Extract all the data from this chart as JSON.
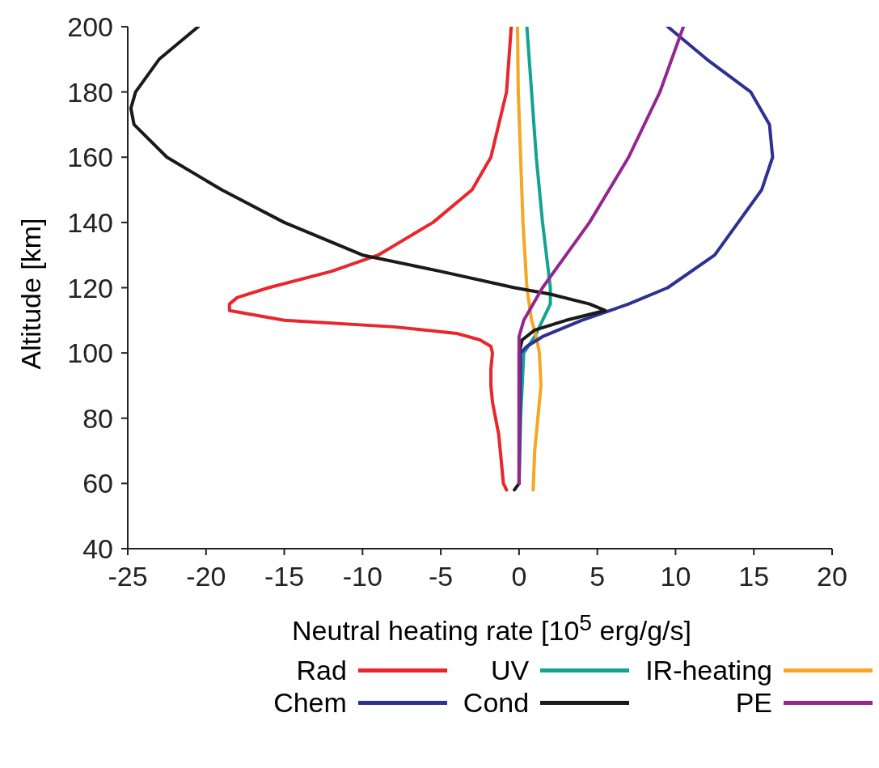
{
  "chart_data": {
    "type": "line",
    "xlabel": "Neutral heating rate [10$^{5}$ erg/g/s]",
    "ylabel": "Altitude [km]",
    "xlim": [
      -25,
      20
    ],
    "ylim": [
      40,
      200
    ],
    "xticks": [
      -25,
      -20,
      -15,
      -10,
      -5,
      0,
      5,
      10,
      15,
      20
    ],
    "yticks": [
      40,
      60,
      80,
      100,
      120,
      140,
      160,
      180,
      200
    ],
    "legend": "bottom",
    "series": [
      {
        "name": "Rad",
        "color": "#e8262b",
        "x": [
          -0.5,
          -0.8,
          -1.8,
          -3,
          -5.5,
          -9,
          -12,
          -16,
          -18,
          -18.5,
          -18.5,
          -15,
          -8,
          -4,
          -2.5,
          -1.8,
          -1.7,
          -1.8,
          -1.8,
          -1.7,
          -1.5,
          -1.3,
          -1.2,
          -1.1,
          -1,
          -0.8
        ],
        "values": [
          200,
          180,
          160,
          150,
          140,
          130,
          125,
          120,
          117,
          115,
          113,
          110,
          108,
          106,
          104,
          102,
          100,
          95,
          90,
          85,
          80,
          75,
          70,
          65,
          60,
          58
        ]
      },
      {
        "name": "UV",
        "color": "#12a391",
        "x": [
          0.5,
          0.8,
          1.1,
          1.5,
          2,
          2,
          1.5,
          1,
          0.3,
          0.1,
          0
        ],
        "values": [
          200,
          180,
          160,
          140,
          120,
          115,
          110,
          105,
          100,
          80,
          60
        ]
      },
      {
        "name": "IR-heating",
        "color": "#f5a623",
        "x": [
          -0.1,
          -0.05,
          0.1,
          0.25,
          0.5,
          0.8,
          1.1,
          1.3,
          1.4,
          1.2,
          1,
          0.9
        ],
        "values": [
          200,
          180,
          160,
          140,
          120,
          110,
          105,
          100,
          90,
          80,
          70,
          58
        ]
      },
      {
        "name": "Chem",
        "color": "#2e3192",
        "x": [
          9.5,
          12,
          14.8,
          16,
          16.2,
          15.5,
          14,
          12.5,
          9.5,
          7,
          4,
          1.5,
          0.5,
          0.1,
          0
        ],
        "values": [
          200,
          190,
          180,
          170,
          160,
          150,
          140,
          130,
          120,
          115,
          110,
          105,
          102,
          100,
          60
        ]
      },
      {
        "name": "Cond",
        "color": "#1a1a1a",
        "x": [
          -20.5,
          -23,
          -24.5,
          -24.8,
          -24.6,
          -22.5,
          -19,
          -15,
          -10,
          -5,
          -0.3,
          2,
          4.5,
          5.5,
          3,
          1,
          0.2,
          0,
          0,
          -0.3
        ],
        "values": [
          200,
          190,
          180,
          175,
          170,
          160,
          150,
          140,
          130,
          125,
          120,
          118,
          115,
          113,
          110,
          107,
          104,
          100,
          60,
          58
        ]
      },
      {
        "name": "PE",
        "color": "#93278f",
        "x": [
          10.5,
          9,
          7,
          4.5,
          3,
          1.5,
          0.3,
          0,
          0
        ],
        "values": [
          200,
          180,
          160,
          140,
          130,
          120,
          110,
          105,
          60
        ]
      }
    ]
  }
}
